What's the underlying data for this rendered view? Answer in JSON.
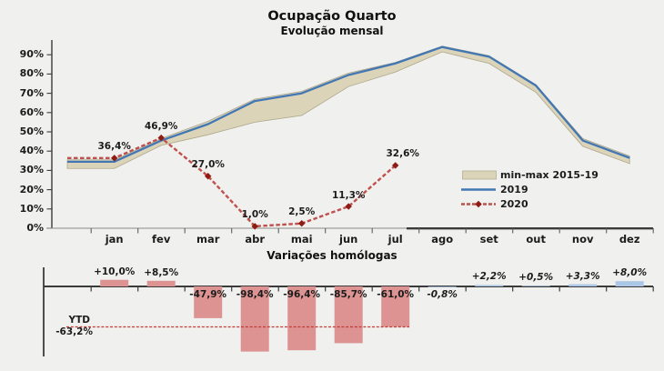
{
  "background": "#f0f0ee",
  "chart_data": [
    {
      "type": "line",
      "title": "Ocupação Quarto",
      "subtitle": "Evolução mensal",
      "categories": [
        "jan",
        "fev",
        "mar",
        "abr",
        "mai",
        "jun",
        "jul",
        "ago",
        "set",
        "out",
        "nov",
        "dez"
      ],
      "y_tick_labels": [
        "0%",
        "10%",
        "20%",
        "30%",
        "40%",
        "50%",
        "60%",
        "70%",
        "80%",
        "90%"
      ],
      "ylabel": "",
      "xlabel": "",
      "ylim": [
        0,
        100
      ],
      "grid": false,
      "legend_position": "right-middle",
      "series": [
        {
          "name": "min-max 2015-19",
          "kind": "band",
          "fill": "#dbd4b9",
          "edge": "#ada68a",
          "max": [
            35.5,
            46.5,
            55.5,
            67,
            71,
            80.5,
            86,
            94.5,
            89.5,
            74.5,
            46.5,
            37.5
          ],
          "min": [
            31,
            43,
            48.5,
            55,
            58.5,
            73.5,
            81,
            91.5,
            85.5,
            70.5,
            42.5,
            33.5
          ]
        },
        {
          "name": "2019",
          "kind": "line",
          "color": "#4277b4",
          "values": [
            34.5,
            45.5,
            54,
            66,
            70,
            79.5,
            85.5,
            94,
            89,
            74,
            45.5,
            36.5
          ]
        },
        {
          "name": "2020",
          "kind": "dashed-line-markers",
          "color": "#c0504d",
          "marker_color": "#8e1c12",
          "values": [
            36.4,
            46.9,
            27.0,
            1.0,
            2.5,
            11.3,
            32.6
          ],
          "point_labels": [
            "36,4%",
            "46,9%",
            "27,0%",
            "1,0%",
            "2,5%",
            "11,3%",
            "32,6%"
          ]
        }
      ]
    },
    {
      "type": "bar",
      "title": "Variações homólogas",
      "categories": [
        "jan",
        "fev",
        "mar",
        "abr",
        "mai",
        "jun",
        "jul",
        "ago",
        "set",
        "out",
        "nov",
        "dez"
      ],
      "values": [
        10.0,
        8.5,
        -47.9,
        -98.4,
        -96.4,
        -85.7,
        -61.0,
        -0.8,
        2.2,
        0.5,
        3.3,
        8.0
      ],
      "labels": [
        "+10,0%",
        "+8,5%",
        "-47,9%",
        "-98,4%",
        "-96,4%",
        "-85,7%",
        "-61,0%",
        "-0,8%",
        "+2,2%",
        "+0,5%",
        "+3,3%",
        "+8,0%"
      ],
      "estimate_flags": [
        false,
        false,
        false,
        false,
        false,
        false,
        false,
        true,
        true,
        true,
        true,
        true
      ],
      "colors": {
        "actual_bar": "#dc9392",
        "estimate_bar": "#abc7e5"
      },
      "ytd": {
        "label": "YTD",
        "value": -63.2,
        "value_label": "-63,2%",
        "line_color": "#c23b36"
      }
    }
  ]
}
